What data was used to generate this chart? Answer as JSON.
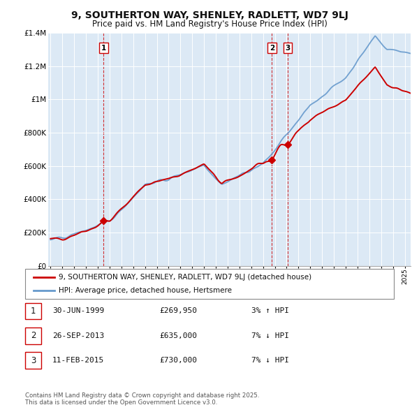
{
  "title": "9, SOUTHERTON WAY, SHENLEY, RADLETT, WD7 9LJ",
  "subtitle": "Price paid vs. HM Land Registry's House Price Index (HPI)",
  "ylim": [
    0,
    1400000
  ],
  "xlim_start": 1994.8,
  "xlim_end": 2025.5,
  "yticks": [
    0,
    200000,
    400000,
    600000,
    800000,
    1000000,
    1200000,
    1400000
  ],
  "ytick_labels": [
    "£0",
    "£200K",
    "£400K",
    "£600K",
    "£800K",
    "£1M",
    "£1.2M",
    "£1.4M"
  ],
  "sale_points": [
    {
      "num": 1,
      "year": 1999.5,
      "price": 269950,
      "date": "30-JUN-1999",
      "pct": "3%",
      "dir": "↑"
    },
    {
      "num": 2,
      "year": 2013.75,
      "price": 635000,
      "date": "26-SEP-2013",
      "pct": "7%",
      "dir": "↓"
    },
    {
      "num": 3,
      "year": 2015.1,
      "price": 730000,
      "date": "11-FEB-2015",
      "pct": "7%",
      "dir": "↓"
    }
  ],
  "legend_line1": "9, SOUTHERTON WAY, SHENLEY, RADLETT, WD7 9LJ (detached house)",
  "legend_line2": "HPI: Average price, detached house, Hertsmere",
  "footer": "Contains HM Land Registry data © Crown copyright and database right 2025.\nThis data is licensed under the Open Government Licence v3.0.",
  "red_color": "#cc0000",
  "blue_color": "#6699cc",
  "plot_bg": "#dce9f5",
  "background_color": "#ffffff",
  "grid_color": "#ffffff"
}
